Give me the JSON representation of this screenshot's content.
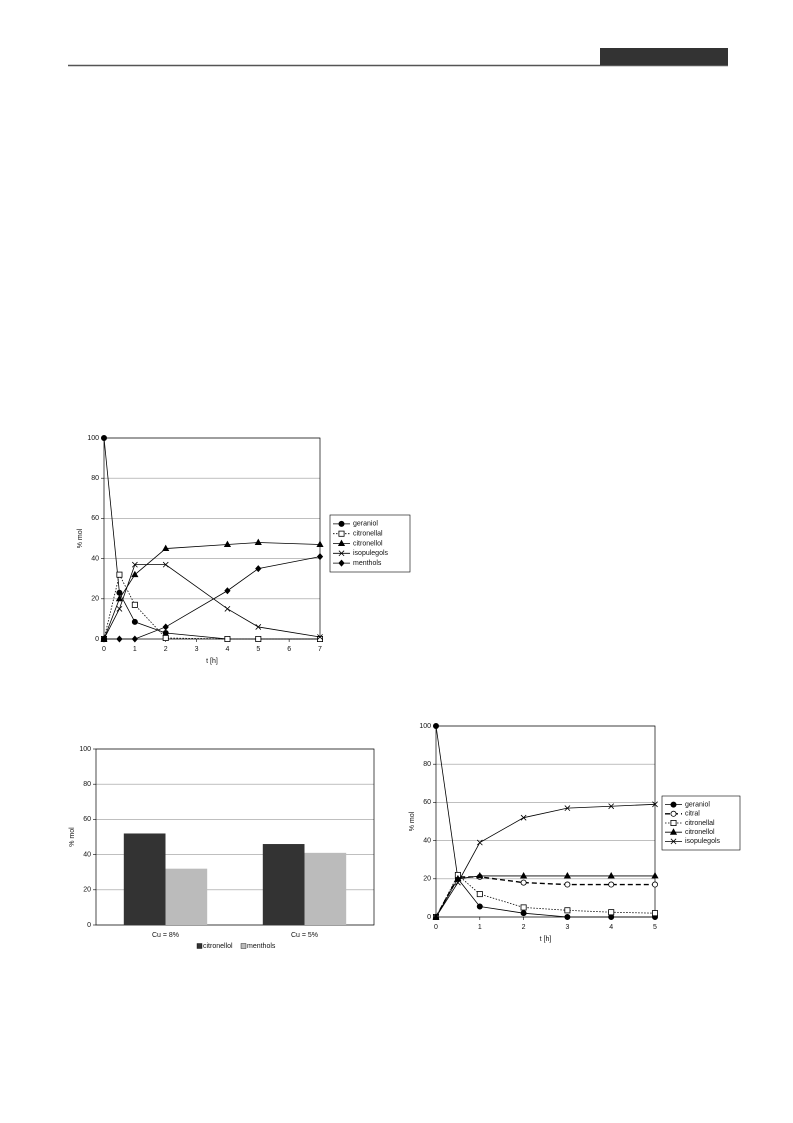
{
  "chart_data": [
    {
      "type": "line",
      "xlabel": "t [h]",
      "ylabel": "% mol",
      "x": [
        0,
        0.5,
        1,
        2,
        4,
        5,
        7
      ],
      "xlim": [
        0,
        7
      ],
      "xticks": [
        0,
        1,
        2,
        3,
        4,
        5,
        6,
        7
      ],
      "ylim": [
        0,
        100
      ],
      "yticks": [
        0,
        20,
        40,
        60,
        80,
        100
      ],
      "grid": true,
      "legend": "right",
      "series": [
        {
          "name": "geraniol",
          "color": "#000000",
          "marker": "circle",
          "line": "solid",
          "values": [
            100,
            23,
            8.5,
            3,
            0,
            0,
            0
          ]
        },
        {
          "name": "citronellal",
          "color": "#000000",
          "marker": "open-square",
          "line": "dotted",
          "values": [
            0,
            32,
            17,
            0.5,
            0,
            0,
            0
          ]
        },
        {
          "name": "citronellol",
          "color": "#000000",
          "marker": "triangle",
          "line": "solid",
          "values": [
            0,
            20,
            32,
            45,
            47,
            48,
            47
          ]
        },
        {
          "name": "isopulegols",
          "color": "#000000",
          "marker": "cross",
          "line": "solid",
          "values": [
            0,
            15,
            37,
            37,
            15,
            6,
            1
          ]
        },
        {
          "name": "menthols",
          "color": "#000000",
          "marker": "diamond",
          "line": "solid",
          "values": [
            0,
            0,
            0,
            6,
            24,
            35,
            41
          ]
        }
      ]
    },
    {
      "type": "bar",
      "ylabel": "% mol",
      "categories": [
        "Cu = 8%",
        "Cu = 5%"
      ],
      "ylim": [
        0,
        100
      ],
      "yticks": [
        0,
        20,
        40,
        60,
        80,
        100
      ],
      "grid": true,
      "legend": "bottom",
      "series": [
        {
          "name": "citronellol",
          "color": "#333333",
          "values": [
            52,
            46
          ]
        },
        {
          "name": "menthols",
          "color": "#bbbbbb",
          "values": [
            32,
            41
          ]
        }
      ]
    },
    {
      "type": "line",
      "xlabel": "t [h]",
      "ylabel": "% mol",
      "x": [
        0,
        0.5,
        1,
        2,
        3,
        4,
        5
      ],
      "xlim": [
        0,
        5
      ],
      "xticks": [
        0,
        1,
        2,
        3,
        4,
        5
      ],
      "ylim": [
        0,
        100
      ],
      "yticks": [
        0,
        20,
        40,
        60,
        80,
        100
      ],
      "grid": true,
      "legend": "right",
      "series": [
        {
          "name": "geraniol",
          "color": "#000000",
          "marker": "circle",
          "line": "solid",
          "values": [
            100,
            20,
            5.5,
            2,
            0,
            0,
            0
          ]
        },
        {
          "name": "citral",
          "color": "#000000",
          "marker": "open-circle",
          "line": "dashed",
          "values": [
            0,
            21,
            21,
            18,
            17,
            17,
            17
          ]
        },
        {
          "name": "citronellal",
          "color": "#000000",
          "marker": "open-square",
          "line": "dotted",
          "values": [
            0,
            22,
            12,
            5,
            3.5,
            2.5,
            2
          ]
        },
        {
          "name": "citronellol",
          "color": "#000000",
          "marker": "triangle",
          "line": "solid",
          "values": [
            0,
            20,
            21.5,
            21.5,
            21.5,
            21.5,
            21.5
          ]
        },
        {
          "name": "isopulegols",
          "color": "#000000",
          "marker": "cross",
          "line": "solid",
          "values": [
            0,
            18,
            39,
            52,
            57,
            58,
            59
          ]
        }
      ]
    }
  ]
}
